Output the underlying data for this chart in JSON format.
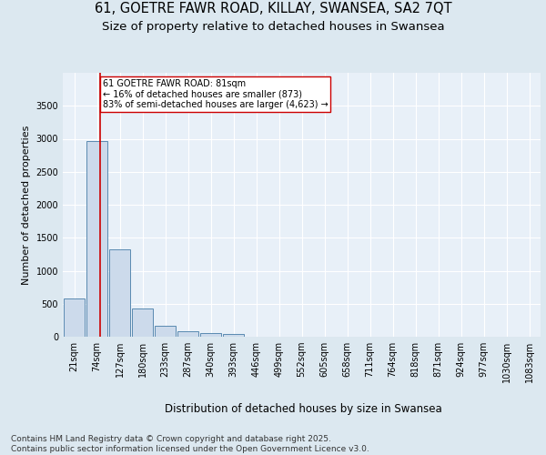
{
  "title_line1": "61, GOETRE FAWR ROAD, KILLAY, SWANSEA, SA2 7QT",
  "title_line2": "Size of property relative to detached houses in Swansea",
  "xlabel": "Distribution of detached houses by size in Swansea",
  "ylabel": "Number of detached properties",
  "bin_labels": [
    "21sqm",
    "74sqm",
    "127sqm",
    "180sqm",
    "233sqm",
    "287sqm",
    "340sqm",
    "393sqm",
    "446sqm",
    "499sqm",
    "552sqm",
    "605sqm",
    "658sqm",
    "711sqm",
    "764sqm",
    "818sqm",
    "871sqm",
    "924sqm",
    "977sqm",
    "1030sqm",
    "1083sqm"
  ],
  "bar_heights": [
    580,
    2970,
    1330,
    430,
    160,
    80,
    55,
    40,
    0,
    0,
    0,
    0,
    0,
    0,
    0,
    0,
    0,
    0,
    0,
    0,
    0
  ],
  "bar_color": "#ccdaeb",
  "bar_edgecolor": "#5a8ab0",
  "bar_linewidth": 0.7,
  "vline_x": 1.15,
  "vline_color": "#cc0000",
  "annotation_text": "61 GOETRE FAWR ROAD: 81sqm\n← 16% of detached houses are smaller (873)\n83% of semi-detached houses are larger (4,623) →",
  "annotation_box_edgecolor": "#cc0000",
  "annotation_box_facecolor": "white",
  "annotation_fontsize": 7.0,
  "ylim": [
    0,
    4000
  ],
  "yticks": [
    0,
    500,
    1000,
    1500,
    2000,
    2500,
    3000,
    3500
  ],
  "background_color": "#dce8f0",
  "plot_background_color": "#e8f0f8",
  "grid_color": "white",
  "footer_text": "Contains HM Land Registry data © Crown copyright and database right 2025.\nContains public sector information licensed under the Open Government Licence v3.0.",
  "title_fontsize": 10.5,
  "subtitle_fontsize": 9.5,
  "ylabel_fontsize": 8,
  "xlabel_fontsize": 8.5,
  "tick_fontsize": 7,
  "footer_fontsize": 6.5
}
